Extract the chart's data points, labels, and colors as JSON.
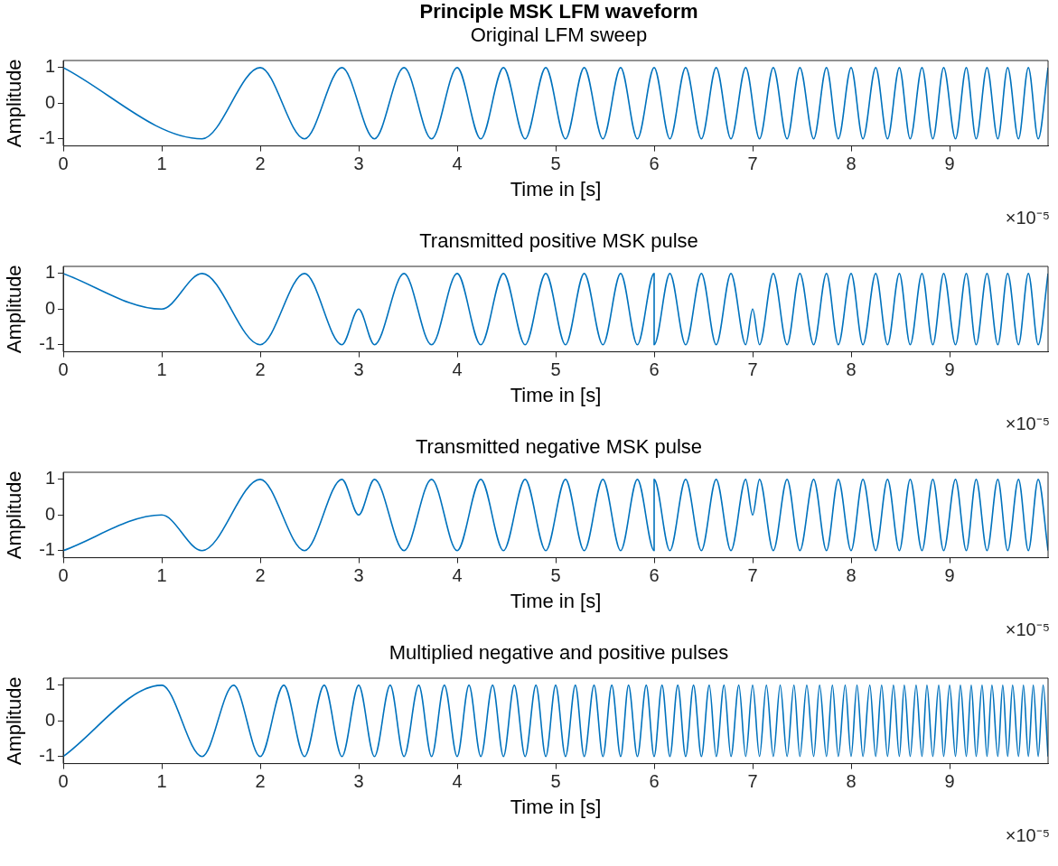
{
  "chart_data": [
    {
      "type": "line",
      "title": "Principle MSK LFM waveform",
      "subtitle": "Original LFM sweep",
      "xlabel": "Time in [s]",
      "ylabel": "Amplitude",
      "color": "#0072bd",
      "marker": "none",
      "xlim": [
        0,
        10
      ],
      "xticks": [
        0,
        1,
        2,
        3,
        4,
        5,
        6,
        7,
        8,
        9
      ],
      "ylim": [
        -1.2,
        1.2
      ],
      "yticks": [
        -1,
        0,
        1
      ],
      "annotations": [
        "×10⁻⁵"
      ],
      "x": [
        0,
        1.41,
        2,
        2.45,
        2.83,
        3.16,
        3.46,
        3.74,
        4,
        4.24,
        4.47,
        4.69,
        4.9,
        5.1,
        5.29,
        5.48,
        5.66,
        5.83,
        6,
        6.16,
        6.32,
        6.48,
        6.63,
        6.78,
        6.93,
        7.07,
        7.21,
        7.35,
        7.48,
        7.62,
        7.75,
        7.87,
        8,
        8.12,
        8.25,
        8.37,
        8.49,
        8.6,
        8.72,
        8.83,
        8.94,
        9.06,
        9.17,
        9.27,
        9.38,
        9.49,
        9.59,
        9.7,
        9.8,
        9.9,
        10
      ],
      "values": [
        1,
        -1,
        1,
        -1,
        1,
        -1,
        1,
        -1,
        1,
        -1,
        1,
        -1,
        1,
        -1,
        1,
        -1,
        1,
        -1,
        1,
        -1,
        1,
        -1,
        1,
        -1,
        1,
        -1,
        1,
        -1,
        1,
        -1,
        1,
        -1,
        1,
        -1,
        1,
        -1,
        1,
        -1,
        1,
        -1,
        1,
        -1,
        1,
        -1,
        1,
        -1,
        1,
        -1,
        1,
        -1,
        1
      ]
    },
    {
      "type": "line",
      "title": "Transmitted positive MSK pulse",
      "xlabel": "Time in [s]",
      "ylabel": "Amplitude",
      "color": "#0072bd",
      "marker": "none",
      "xlim": [
        0,
        10
      ],
      "xticks": [
        0,
        1,
        2,
        3,
        4,
        5,
        6,
        7,
        8,
        9
      ],
      "ylim": [
        -1.2,
        1.2
      ],
      "yticks": [
        -1,
        0,
        1
      ],
      "annotations": [
        "×10⁻⁵"
      ],
      "x": [
        0,
        1,
        1.41,
        2,
        2.45,
        2.83,
        3,
        3.16,
        3.46,
        3.74,
        4,
        4.24,
        4.47,
        4.69,
        4.9,
        5.1,
        5.29,
        5.48,
        5.66,
        5.83,
        6,
        6,
        6.16,
        6.32,
        6.48,
        6.63,
        6.78,
        6.93,
        7,
        7.07,
        7.21,
        7.35,
        7.48,
        7.62,
        7.75,
        7.87,
        8,
        8.12,
        8.25,
        8.37,
        8.49,
        8.6,
        8.72,
        8.83,
        8.94,
        9.06,
        9.17,
        9.27,
        9.38,
        9.49,
        9.59,
        9.7,
        9.8,
        9.9,
        10
      ],
      "values": [
        1,
        0,
        1,
        -1,
        1,
        -1,
        0,
        -1,
        1,
        -1,
        1,
        -1,
        1,
        -1,
        1,
        -1,
        1,
        -1,
        1,
        -1,
        1,
        -1,
        1,
        -1,
        1,
        -1,
        1,
        -1,
        0,
        -1,
        1,
        -1,
        1,
        -1,
        1,
        -1,
        1,
        -1,
        1,
        -1,
        1,
        -1,
        1,
        -1,
        1,
        -1,
        1,
        -1,
        1,
        -1,
        1,
        -1,
        1,
        -1,
        1
      ]
    },
    {
      "type": "line",
      "title": "Transmitted negative MSK pulse",
      "xlabel": "Time in [s]",
      "ylabel": "Amplitude",
      "color": "#0072bd",
      "marker": "none",
      "xlim": [
        0,
        10
      ],
      "xticks": [
        0,
        1,
        2,
        3,
        4,
        5,
        6,
        7,
        8,
        9
      ],
      "ylim": [
        -1.2,
        1.2
      ],
      "yticks": [
        -1,
        0,
        1
      ],
      "annotations": [
        "×10⁻⁵"
      ],
      "x": [
        0,
        1,
        1.41,
        2,
        2.45,
        2.83,
        3,
        3.16,
        3.46,
        3.74,
        4,
        4.24,
        4.47,
        4.69,
        4.9,
        5.1,
        5.29,
        5.48,
        5.66,
        5.83,
        6,
        6,
        6.16,
        6.32,
        6.48,
        6.63,
        6.78,
        6.93,
        7,
        7.07,
        7.21,
        7.35,
        7.48,
        7.62,
        7.75,
        7.87,
        8,
        8.12,
        8.25,
        8.37,
        8.49,
        8.6,
        8.72,
        8.83,
        8.94,
        9.06,
        9.17,
        9.27,
        9.38,
        9.49,
        9.59,
        9.7,
        9.8,
        9.9,
        10
      ],
      "values": [
        -1,
        0,
        -1,
        1,
        -1,
        1,
        0,
        1,
        -1,
        1,
        -1,
        1,
        -1,
        1,
        -1,
        1,
        -1,
        1,
        -1,
        1,
        -1,
        1,
        -1,
        1,
        -1,
        1,
        -1,
        1,
        0,
        1,
        -1,
        1,
        -1,
        1,
        -1,
        1,
        -1,
        1,
        -1,
        1,
        -1,
        1,
        -1,
        1,
        -1,
        1,
        -1,
        1,
        -1,
        1,
        -1,
        1,
        -1,
        1,
        -1
      ]
    },
    {
      "type": "line",
      "title": "Multiplied negative and positive pulses",
      "xlabel": "Time in [s]",
      "ylabel": "Amplitude",
      "color": "#0072bd",
      "marker": "none",
      "xlim": [
        0,
        10
      ],
      "xticks": [
        0,
        1,
        2,
        3,
        4,
        5,
        6,
        7,
        8,
        9
      ],
      "ylim": [
        -1.2,
        1.2
      ],
      "yticks": [
        -1,
        0,
        1
      ],
      "annotations": [
        "×10⁻⁵"
      ],
      "x": [
        0,
        1,
        1.41,
        1.73,
        2,
        2.24,
        2.45,
        2.65,
        2.83,
        3,
        3.16,
        3.32,
        3.46,
        3.61,
        3.74,
        3.87,
        4,
        4.12,
        4.24,
        4.36,
        4.47,
        4.58,
        4.69,
        4.8,
        4.9,
        5,
        5.1,
        5.2,
        5.29,
        5.39,
        5.48,
        5.57,
        5.66,
        5.74,
        5.83,
        5.92,
        6,
        6.08,
        6.16,
        6.24,
        6.32,
        6.4,
        6.48,
        6.56,
        6.63,
        6.71,
        6.78,
        6.86,
        6.93,
        7,
        7.07,
        7.14,
        7.21,
        7.28,
        7.35,
        7.42,
        7.48,
        7.55,
        7.62,
        7.68,
        7.75,
        7.81,
        7.87,
        7.94,
        8,
        8.06,
        8.12,
        8.19,
        8.25,
        8.31,
        8.37,
        8.43,
        8.49,
        8.54,
        8.6,
        8.66,
        8.72,
        8.77,
        8.83,
        8.89,
        8.94,
        9,
        9.06,
        9.11,
        9.17,
        9.22,
        9.27,
        9.33,
        9.38,
        9.43,
        9.49,
        9.54,
        9.59,
        9.64,
        9.7,
        9.75,
        9.8,
        9.85,
        9.9,
        9.95,
        10
      ],
      "values": [
        -1,
        1,
        -1,
        1,
        -1,
        1,
        -1,
        1,
        -1,
        1,
        -1,
        1,
        -1,
        1,
        -1,
        1,
        -1,
        1,
        -1,
        1,
        -1,
        1,
        -1,
        1,
        -1,
        1,
        -1,
        1,
        -1,
        1,
        -1,
        1,
        -1,
        1,
        -1,
        1,
        -1,
        1,
        -1,
        1,
        -1,
        1,
        -1,
        1,
        -1,
        1,
        -1,
        1,
        -1,
        1,
        -1,
        1,
        -1,
        1,
        -1,
        1,
        -1,
        1,
        -1,
        1,
        -1,
        1,
        -1,
        1,
        -1,
        1,
        -1,
        1,
        -1,
        1,
        -1,
        1,
        -1,
        1,
        -1,
        1,
        -1,
        1,
        -1,
        1,
        -1,
        1,
        -1,
        1,
        -1,
        1,
        -1,
        1,
        -1,
        1,
        -1,
        1,
        -1,
        1,
        -1,
        1,
        -1,
        1,
        -1,
        1,
        -1
      ]
    }
  ]
}
